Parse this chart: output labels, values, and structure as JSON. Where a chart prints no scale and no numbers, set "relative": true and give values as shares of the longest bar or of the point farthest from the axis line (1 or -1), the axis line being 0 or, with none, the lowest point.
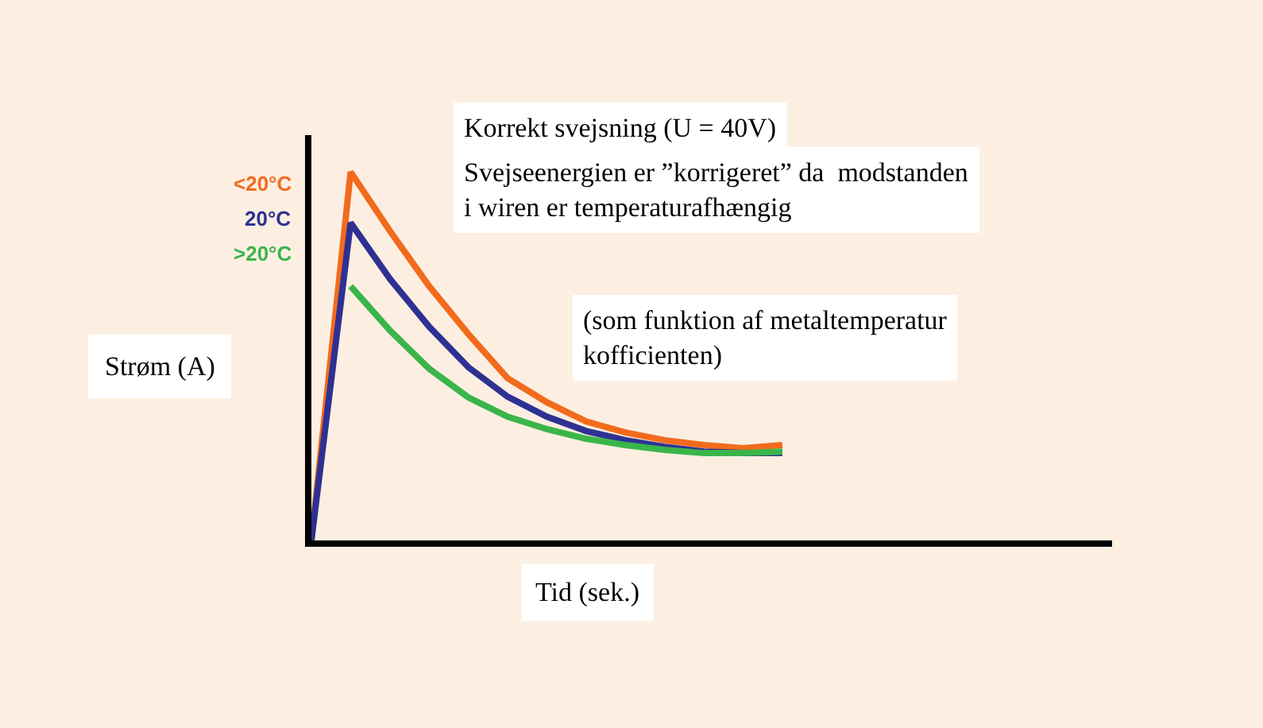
{
  "chart_data": {
    "type": "line",
    "relative": true,
    "title": "Korrekt svejsning (U = 40V)",
    "xlabel": "Tid (sek.)",
    "ylabel": "Strøm (A)",
    "annotations": [
      "Svejseenergien er ”korrigeret” da  modstanden\ni wiren er temperaturafhængig",
      "(som funktion af metaltemperatur\nkofficienten)"
    ],
    "legend": false,
    "grid": false,
    "marker": "none",
    "line_style": "solid",
    "categories": [
      null,
      null,
      null,
      null,
      null,
      null,
      null,
      null,
      null,
      null,
      null,
      null,
      null,
      null,
      null,
      null,
      null,
      null,
      null,
      null,
      null
    ],
    "series": [
      {
        "name": "<20°C",
        "color": "#f26b1d",
        "values": [
          0,
          1,
          0.84,
          0.69,
          0.56,
          0.44,
          0.375,
          0.323,
          0.293,
          0.272,
          0.259,
          0.25,
          0.259,
          null,
          null,
          null,
          null,
          null,
          null,
          null,
          null
        ]
      },
      {
        "name": "20°C",
        "color": "#2e3192",
        "values": [
          0,
          0.862,
          0.71,
          0.58,
          0.47,
          0.39,
          0.336,
          0.297,
          0.272,
          0.254,
          0.241,
          0.237,
          0.237,
          null,
          null,
          null,
          null,
          null,
          null,
          null,
          null
        ]
      },
      {
        "name": ">20°C",
        "color": "#3ab54a",
        "values": [
          null,
          0.69,
          0.57,
          0.466,
          0.388,
          0.336,
          0.302,
          0.276,
          0.259,
          0.246,
          0.237,
          0.237,
          0.241,
          null,
          null,
          null,
          null,
          null,
          null,
          null,
          null
        ]
      }
    ]
  }
}
